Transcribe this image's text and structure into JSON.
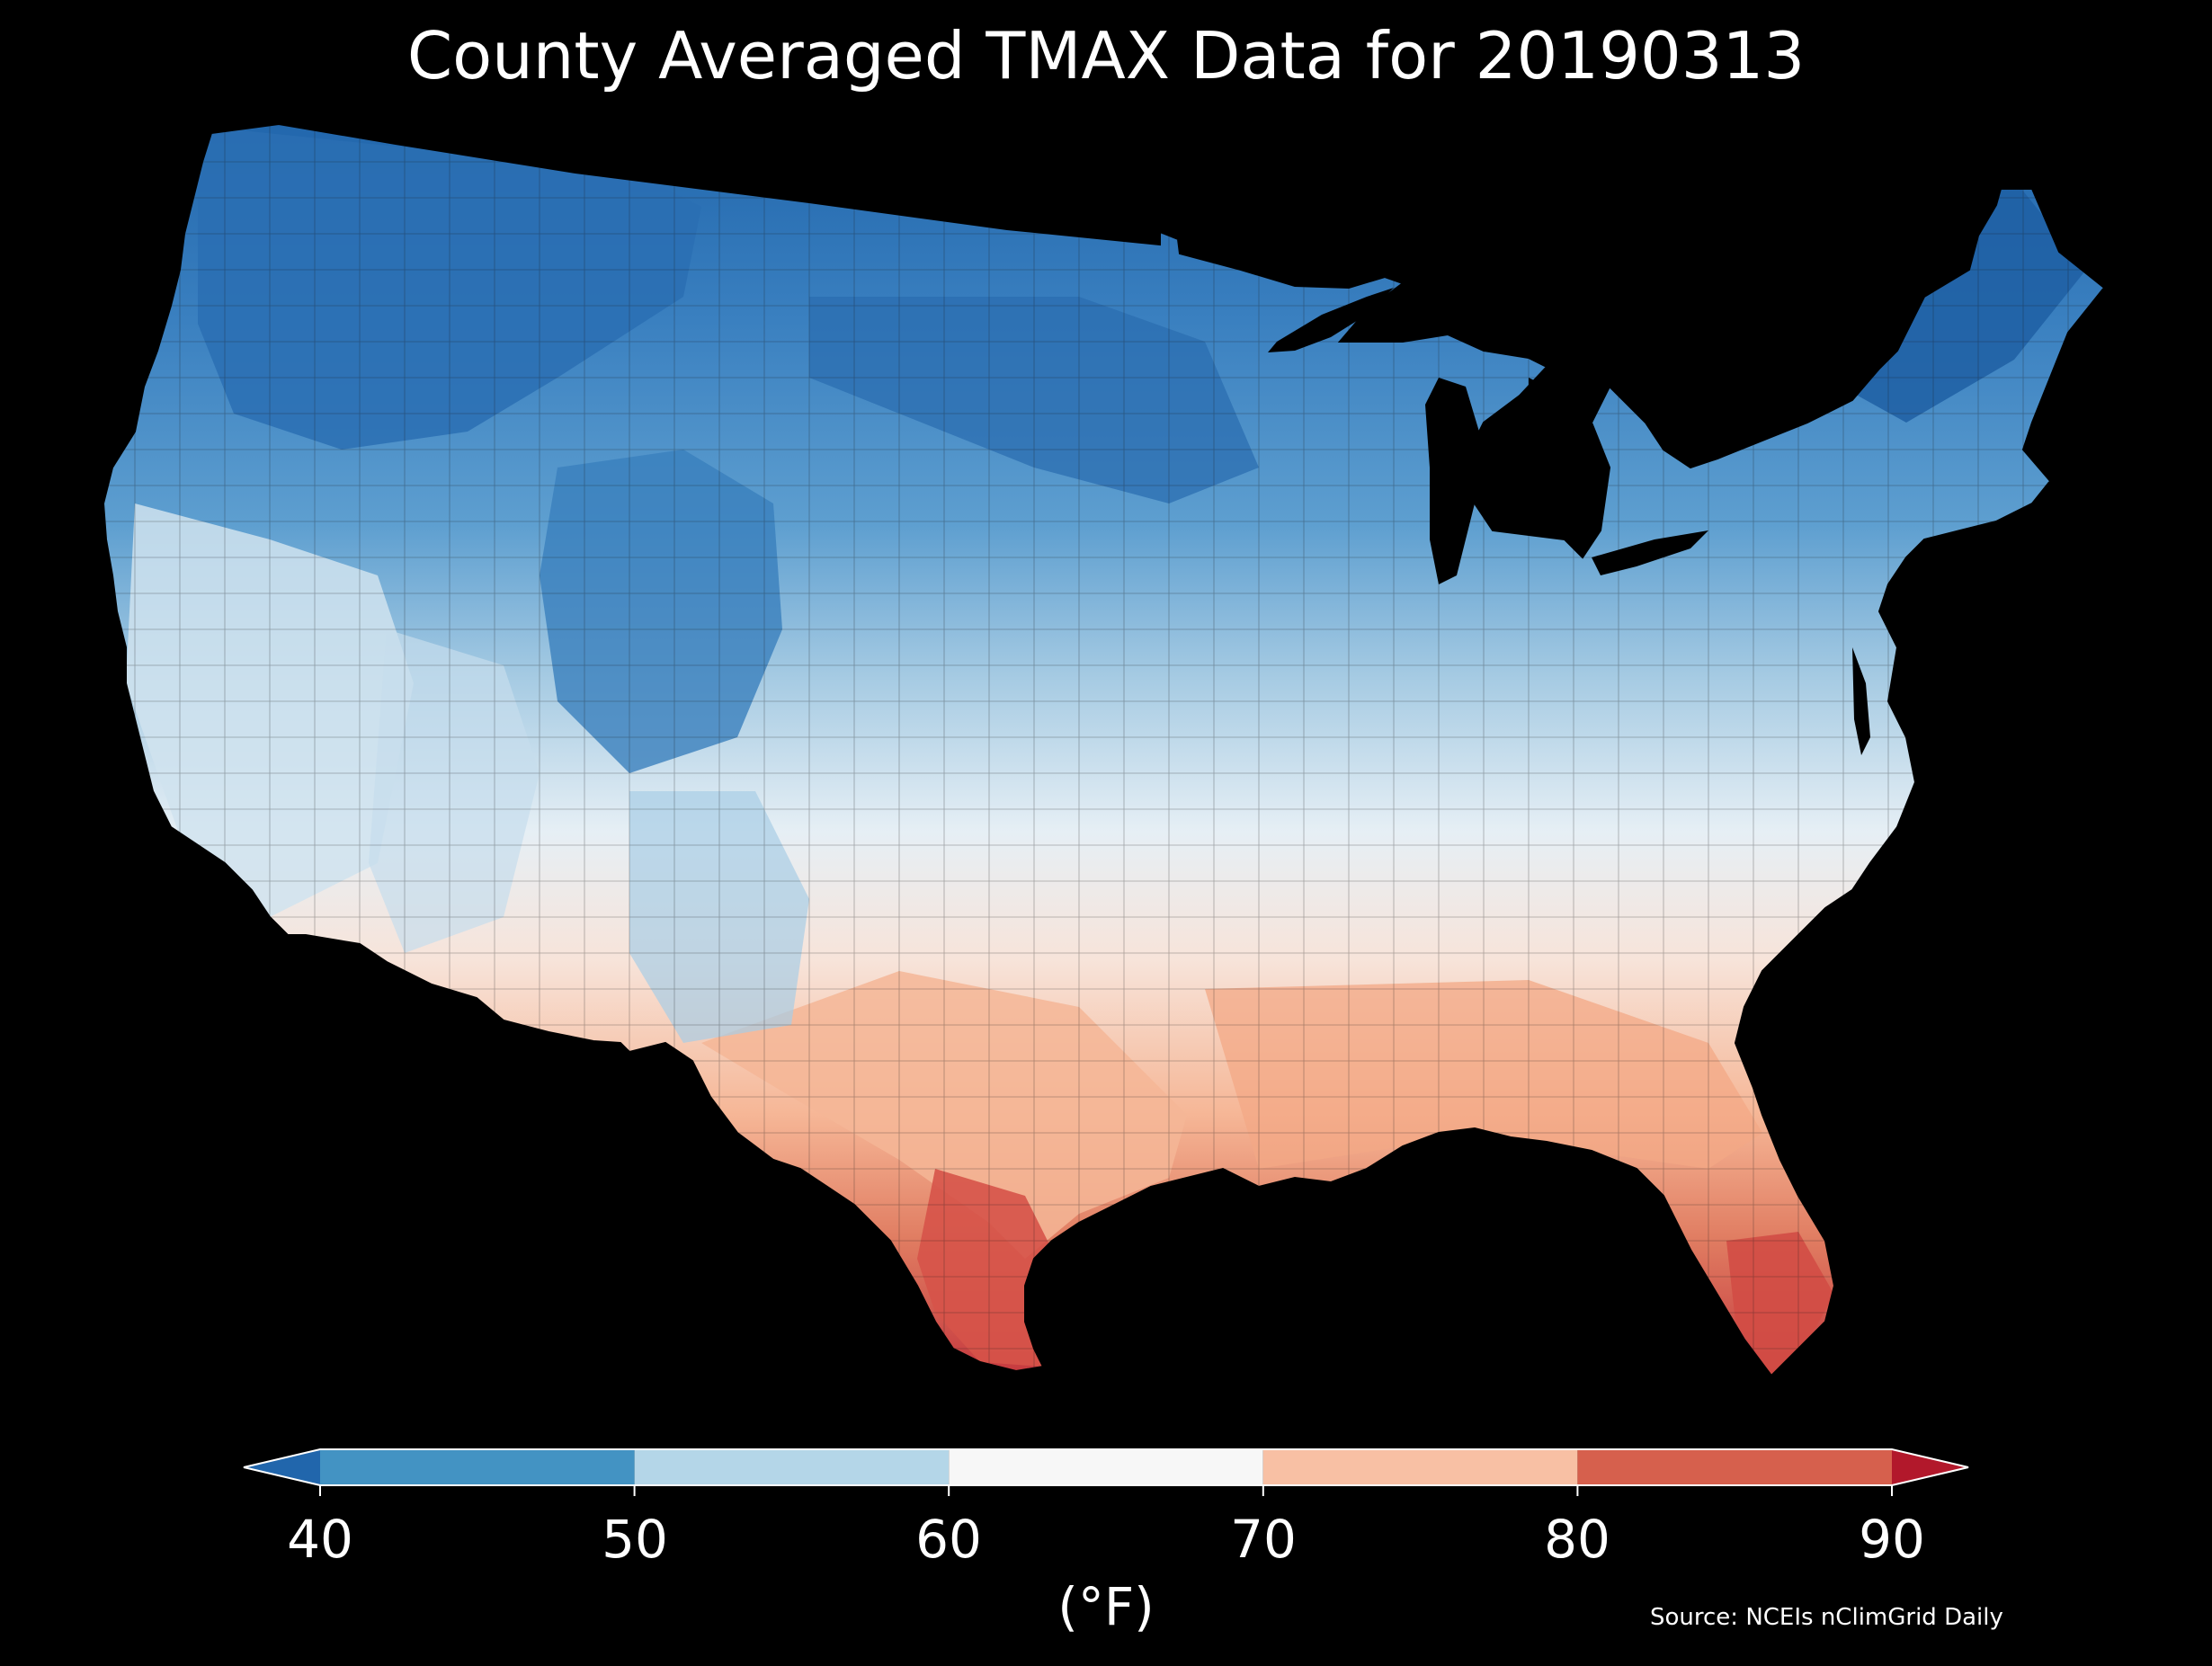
{
  "title": "County Averaged TMAX Data for 20190313",
  "colorbar": {
    "ticks": [
      "40",
      "50",
      "60",
      "70",
      "80",
      "90"
    ],
    "unit": "(°F)",
    "bins": [
      {
        "from": 40,
        "to": 50,
        "color": "#4393c3"
      },
      {
        "from": 50,
        "to": 60,
        "color": "#b4d6e8"
      },
      {
        "from": 60,
        "to": 70,
        "color": "#f7f7f7"
      },
      {
        "from": 70,
        "to": 80,
        "color": "#f8c0a4"
      },
      {
        "from": 80,
        "to": 90,
        "color": "#d6604d"
      }
    ],
    "under_color": "#2166ac",
    "over_color": "#b2182b"
  },
  "source": "Source: NCEIs nClimGrid Daily",
  "map": {
    "background": "#000000",
    "region": "contiguous-us-counties",
    "color_regions": [
      {
        "region": "northern-rockies-and-plains",
        "range_f": "<40 to 45",
        "color": "#2166ac"
      },
      {
        "region": "upper-midwest-and-northeast",
        "range_f": "40-50",
        "color": "#3f88c4"
      },
      {
        "region": "pacific-northwest-and-great-basin",
        "range_f": "45-55",
        "color": "#6aaad5"
      },
      {
        "region": "central-plains-and-ohio-valley",
        "range_f": "55-65",
        "color": "#d4e6f1"
      },
      {
        "region": "southeast-and-south-central",
        "range_f": "65-75",
        "color": "#f8c8ae"
      },
      {
        "region": "gulf-coast-and-south-texas",
        "range_f": "75-85",
        "color": "#e08466"
      },
      {
        "region": "south-florida-and-rio-grande",
        "range_f": "85-90",
        "color": "#c93a3a"
      }
    ]
  }
}
